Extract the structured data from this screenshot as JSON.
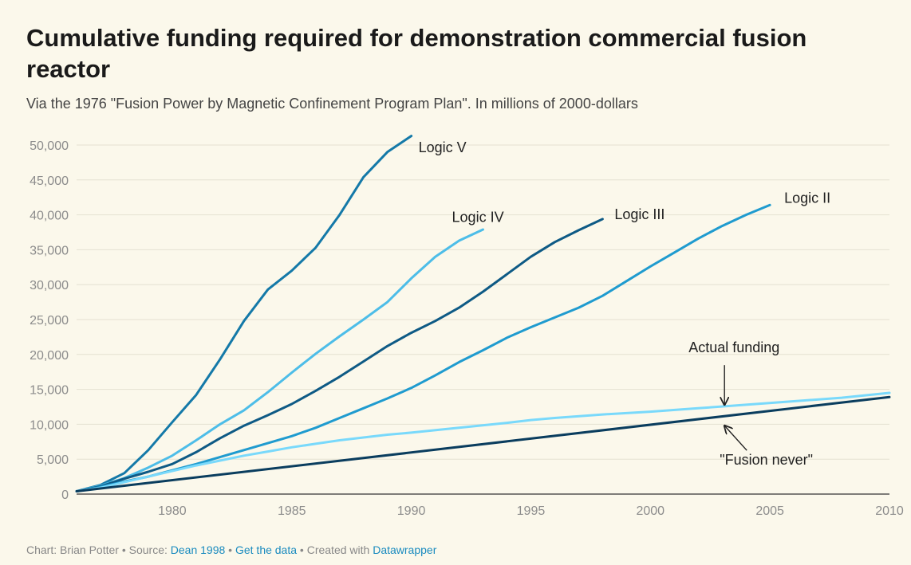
{
  "title": "Cumulative funding required for demonstration commercial fusion reactor",
  "subtitle": "Via the 1976 \"Fusion Power by Magnetic Confinement Program Plan\". In millions of 2000-dollars",
  "footer": {
    "prefix": "Chart: Brian Potter • Source: ",
    "source_link": "Dean 1998",
    "sep1": " • ",
    "data_link": "Get the data",
    "sep2": " • Created with ",
    "tool_link": "Datawrapper"
  },
  "chart_data": {
    "type": "line",
    "xlim": [
      1976,
      2010
    ],
    "ylim": [
      0,
      50000
    ],
    "x_ticks": [
      1980,
      1985,
      1990,
      1995,
      2000,
      2005,
      2010
    ],
    "y_ticks": [
      0,
      5000,
      10000,
      15000,
      20000,
      25000,
      30000,
      35000,
      40000,
      45000,
      50000
    ],
    "y_tick_labels": [
      "0",
      "5,000",
      "10,000",
      "15,000",
      "20,000",
      "25,000",
      "30,000",
      "35,000",
      "40,000",
      "45,000",
      "50,000"
    ],
    "grid": "horizontal",
    "series": [
      {
        "name": "Logic V",
        "color": "#1479a8",
        "x": [
          1976,
          1977,
          1978,
          1979,
          1980,
          1981,
          1982,
          1983,
          1984,
          1985,
          1986,
          1987,
          1988,
          1989,
          1990
        ],
        "y": [
          400,
          1300,
          3000,
          6300,
          10300,
          14200,
          19300,
          24800,
          29300,
          32000,
          35300,
          40000,
          45400,
          49000,
          51300
        ]
      },
      {
        "name": "Logic IV",
        "color": "#4dbde8",
        "x": [
          1976,
          1977,
          1978,
          1979,
          1980,
          1981,
          1982,
          1983,
          1984,
          1985,
          1986,
          1987,
          1988,
          1989,
          1990,
          1991,
          1992,
          1993
        ],
        "y": [
          400,
          1200,
          2300,
          3800,
          5500,
          7700,
          10000,
          12000,
          14600,
          17400,
          20100,
          22600,
          25000,
          27500,
          30900,
          34000,
          36300,
          37900
        ]
      },
      {
        "name": "Logic III",
        "color": "#0e5a85",
        "x": [
          1976,
          1977,
          1978,
          1979,
          1980,
          1981,
          1982,
          1983,
          1984,
          1985,
          1986,
          1987,
          1988,
          1989,
          1990,
          1991,
          1992,
          1993,
          1994,
          1995,
          1996,
          1997,
          1998
        ],
        "y": [
          400,
          1100,
          2200,
          3200,
          4300,
          6000,
          8000,
          9800,
          11300,
          12900,
          14800,
          16800,
          19000,
          21200,
          23100,
          24800,
          26700,
          29000,
          31500,
          34000,
          36100,
          37800,
          39400
        ]
      },
      {
        "name": "Logic II",
        "color": "#1f9bcf",
        "x": [
          1976,
          1977,
          1978,
          1979,
          1980,
          1981,
          1982,
          1983,
          1984,
          1985,
          1986,
          1987,
          1988,
          1989,
          1990,
          1991,
          1992,
          1993,
          1994,
          1995,
          1996,
          1997,
          1998,
          1999,
          2000,
          2001,
          2002,
          2003,
          2004,
          2005
        ],
        "y": [
          400,
          1000,
          1800,
          2500,
          3400,
          4300,
          5300,
          6300,
          7300,
          8300,
          9500,
          10900,
          12300,
          13700,
          15200,
          17000,
          18900,
          20600,
          22400,
          23900,
          25300,
          26700,
          28400,
          30500,
          32600,
          34600,
          36600,
          38400,
          40000,
          41400
        ]
      },
      {
        "name": "Actual funding",
        "color": "#79d9fb",
        "x": [
          1976,
          1977,
          1978,
          1979,
          1980,
          1981,
          1982,
          1983,
          1984,
          1985,
          1986,
          1987,
          1988,
          1989,
          1990,
          1992,
          1994,
          1995,
          1996,
          1998,
          2000,
          2002,
          2004,
          2006,
          2008,
          2010
        ],
        "y": [
          400,
          900,
          1700,
          2500,
          3300,
          4100,
          4800,
          5500,
          6100,
          6700,
          7200,
          7700,
          8100,
          8500,
          8800,
          9500,
          10200,
          10600,
          10900,
          11400,
          11800,
          12300,
          12800,
          13300,
          13800,
          14500
        ]
      },
      {
        "name": "\"Fusion never\"",
        "color": "#0a3d5e",
        "x": [
          1976,
          2010
        ],
        "y": [
          400,
          13900
        ]
      }
    ],
    "annotations": [
      {
        "text": "Logic V",
        "x": 1990.3,
        "y": 49000
      },
      {
        "text": "Logic IV",
        "x": 1991.7,
        "y": 39000
      },
      {
        "text": "Logic III",
        "x": 1998.5,
        "y": 39400
      },
      {
        "text": "Logic II",
        "x": 2005.6,
        "y": 41700
      },
      {
        "text": "Actual funding",
        "x": 2001.6,
        "y": 20300,
        "arrow_to": [
          2003.1,
          12800
        ]
      },
      {
        "text": "\"Fusion never\"",
        "x": 2002.9,
        "y": 4200,
        "arrow_to": [
          2003.1,
          9800
        ]
      }
    ]
  }
}
